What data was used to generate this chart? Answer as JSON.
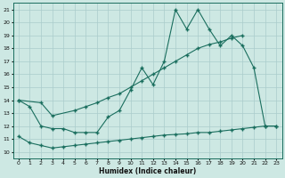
{
  "background_color": "#cde8e3",
  "grid_color": "#aacccc",
  "line_color": "#1a6e5e",
  "xlabel": "Humidex (Indice chaleur)",
  "xlim": [
    -0.5,
    23.5
  ],
  "ylim": [
    9.5,
    21.5
  ],
  "xticks": [
    0,
    1,
    2,
    3,
    4,
    5,
    6,
    7,
    8,
    9,
    10,
    11,
    12,
    13,
    14,
    15,
    16,
    17,
    18,
    19,
    20,
    21,
    22,
    23
  ],
  "yticks": [
    10,
    11,
    12,
    13,
    14,
    15,
    16,
    17,
    18,
    19,
    20,
    21
  ],
  "curve1_x": [
    0,
    1,
    2,
    3,
    4,
    5,
    6,
    7,
    8,
    9,
    10,
    11,
    12,
    13,
    14,
    15,
    16,
    17,
    18,
    19,
    20,
    21,
    22,
    23
  ],
  "curve1_y": [
    14.0,
    13.5,
    12.0,
    11.8,
    11.8,
    11.5,
    11.5,
    11.5,
    12.7,
    13.2,
    14.8,
    16.5,
    15.2,
    17.0,
    21.0,
    19.5,
    21.0,
    19.5,
    18.2,
    19.0,
    18.2,
    16.5,
    12.0,
    12.0
  ],
  "curve2_x": [
    0,
    2,
    3,
    5,
    6,
    7,
    8,
    9,
    10,
    11,
    12,
    13,
    14,
    15,
    16,
    17,
    18,
    19,
    20
  ],
  "curve2_y": [
    14.0,
    13.8,
    12.8,
    13.2,
    13.5,
    13.8,
    14.2,
    14.5,
    15.0,
    15.5,
    16.0,
    16.5,
    17.0,
    17.5,
    18.0,
    18.3,
    18.5,
    18.8,
    19.0
  ],
  "curve3_x": [
    0,
    1,
    2,
    3,
    4,
    5,
    6,
    7,
    8,
    9,
    10,
    11,
    12,
    13,
    14,
    15,
    16,
    17,
    18,
    19,
    20,
    21,
    22,
    23
  ],
  "curve3_y": [
    11.2,
    10.7,
    10.5,
    10.3,
    10.4,
    10.5,
    10.6,
    10.7,
    10.8,
    10.9,
    11.0,
    11.1,
    11.2,
    11.3,
    11.35,
    11.4,
    11.5,
    11.5,
    11.6,
    11.7,
    11.8,
    11.9,
    12.0,
    12.0
  ]
}
